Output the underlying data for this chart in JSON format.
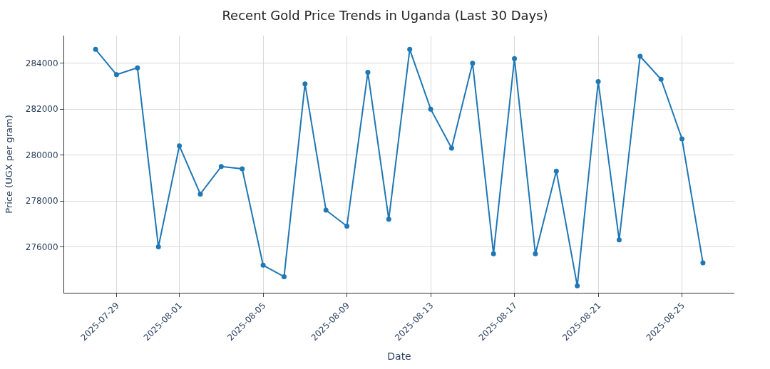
{
  "chart_data": {
    "type": "line",
    "title": "Recent Gold Price Trends in Uganda (Last 30 Days)",
    "xlabel": "Date",
    "ylabel": "Price (UGX per gram)",
    "x": [
      "2025-07-28",
      "2025-07-29",
      "2025-07-30",
      "2025-07-31",
      "2025-08-01",
      "2025-08-02",
      "2025-08-03",
      "2025-08-04",
      "2025-08-05",
      "2025-08-06",
      "2025-08-07",
      "2025-08-08",
      "2025-08-09",
      "2025-08-10",
      "2025-08-11",
      "2025-08-12",
      "2025-08-13",
      "2025-08-14",
      "2025-08-15",
      "2025-08-16",
      "2025-08-17",
      "2025-08-18",
      "2025-08-19",
      "2025-08-20",
      "2025-08-21",
      "2025-08-22",
      "2025-08-23",
      "2025-08-24",
      "2025-08-25",
      "2025-08-26"
    ],
    "series": [
      {
        "color": "#1f77b4",
        "values": [
          284600,
          283500,
          283800,
          276000,
          280400,
          278300,
          279500,
          279400,
          275200,
          274700,
          283100,
          277600,
          276900,
          283600,
          277200,
          284600,
          282000,
          280300,
          284000,
          275700,
          284200,
          275700,
          279300,
          274300,
          283200,
          276300,
          284300,
          283300,
          280700,
          275300
        ]
      }
    ],
    "xlim": [
      "2025-07-26T12:00",
      "2025-08-27T12:00"
    ],
    "xticks": [
      "2025-07-29",
      "2025-08-01",
      "2025-08-05",
      "2025-08-09",
      "2025-08-13",
      "2025-08-17",
      "2025-08-21",
      "2025-08-25"
    ],
    "ylim": [
      274000,
      285200
    ],
    "yticks": [
      276000,
      278000,
      280000,
      282000,
      284000
    ],
    "grid": true,
    "marker": "circle",
    "line_style": "solid",
    "legend": false
  }
}
